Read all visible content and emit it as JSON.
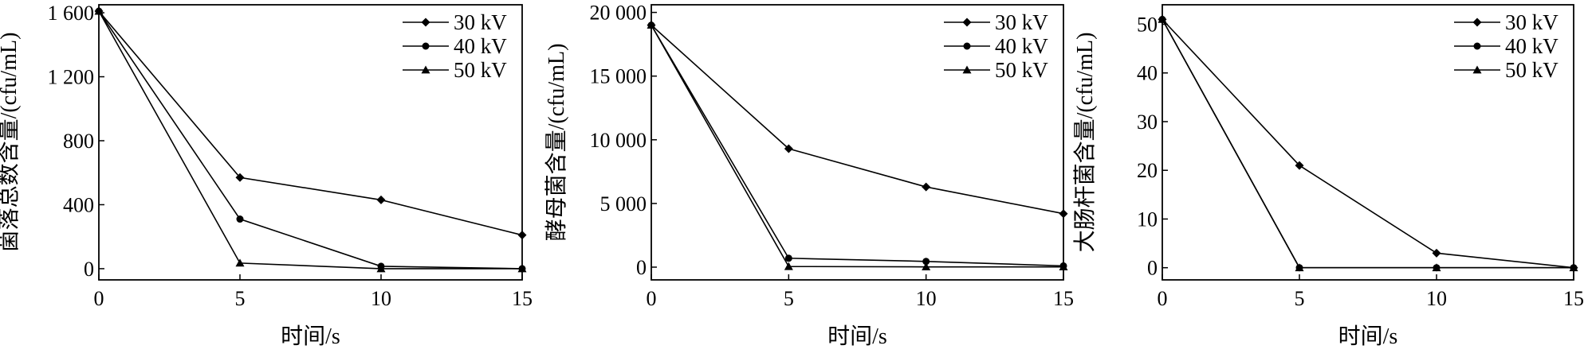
{
  "chart_data": [
    {
      "type": "line",
      "xlabel": "时间/s",
      "ylabel": "菌落总数含量/(cfu/mL)",
      "x": [
        0,
        5,
        10,
        15
      ],
      "xticks": [
        "0",
        "5",
        "10",
        "15"
      ],
      "xlim": [
        0,
        15
      ],
      "ylim": [
        -70,
        1650
      ],
      "yticks": [
        {
          "value": 0,
          "label": "0"
        },
        {
          "value": 400,
          "label": "400"
        },
        {
          "value": 800,
          "label": "800"
        },
        {
          "value": 1200,
          "label": "1 200"
        },
        {
          "value": 1600,
          "label": "1 600"
        }
      ],
      "series": [
        {
          "name": "30 kV",
          "marker": "diamond",
          "values": [
            1610,
            570,
            430,
            210
          ]
        },
        {
          "name": "40 kV",
          "marker": "circle",
          "values": [
            1610,
            310,
            15,
            0
          ]
        },
        {
          "name": "50 kV",
          "marker": "triangle",
          "values": [
            1610,
            35,
            0,
            0
          ]
        }
      ],
      "legend": "top-right",
      "grid": false
    },
    {
      "type": "line",
      "xlabel": "时间/s",
      "ylabel": "酵母菌含量/(cfu/mL)",
      "x": [
        0,
        5,
        10,
        15
      ],
      "xticks": [
        "0",
        "5",
        "10",
        "15"
      ],
      "xlim": [
        0,
        15
      ],
      "ylim": [
        -1000,
        20600
      ],
      "yticks": [
        {
          "value": 0,
          "label": "0"
        },
        {
          "value": 5000,
          "label": "5 000"
        },
        {
          "value": 10000,
          "label": "10 000"
        },
        {
          "value": 15000,
          "label": "15 000"
        },
        {
          "value": 20000,
          "label": "20 000"
        }
      ],
      "series": [
        {
          "name": "30 kV",
          "marker": "diamond",
          "values": [
            19000,
            9300,
            6300,
            4200
          ]
        },
        {
          "name": "40 kV",
          "marker": "circle",
          "values": [
            19000,
            700,
            450,
            100
          ]
        },
        {
          "name": "50 kV",
          "marker": "triangle",
          "values": [
            19000,
            50,
            20,
            20
          ]
        }
      ],
      "legend": "top-right",
      "grid": false
    },
    {
      "type": "line",
      "xlabel": "时间/s",
      "ylabel": "大肠杆菌含量/(cfu/mL)",
      "x": [
        0,
        5,
        10,
        15
      ],
      "xticks": [
        "0",
        "5",
        "10",
        "15"
      ],
      "xlim": [
        0,
        15
      ],
      "ylim": [
        -2.5,
        54
      ],
      "yticks": [
        {
          "value": 0,
          "label": "0"
        },
        {
          "value": 10,
          "label": "10"
        },
        {
          "value": 20,
          "label": "20"
        },
        {
          "value": 30,
          "label": "30"
        },
        {
          "value": 40,
          "label": "40"
        },
        {
          "value": 50,
          "label": "50"
        }
      ],
      "series": [
        {
          "name": "30 kV",
          "marker": "diamond",
          "values": [
            51,
            21,
            3,
            0
          ]
        },
        {
          "name": "40 kV",
          "marker": "circle",
          "values": [
            51,
            0,
            0,
            0
          ]
        },
        {
          "name": "50 kV",
          "marker": "triangle",
          "values": [
            51,
            0,
            0,
            0
          ]
        }
      ],
      "legend": "top-right",
      "grid": false
    }
  ]
}
